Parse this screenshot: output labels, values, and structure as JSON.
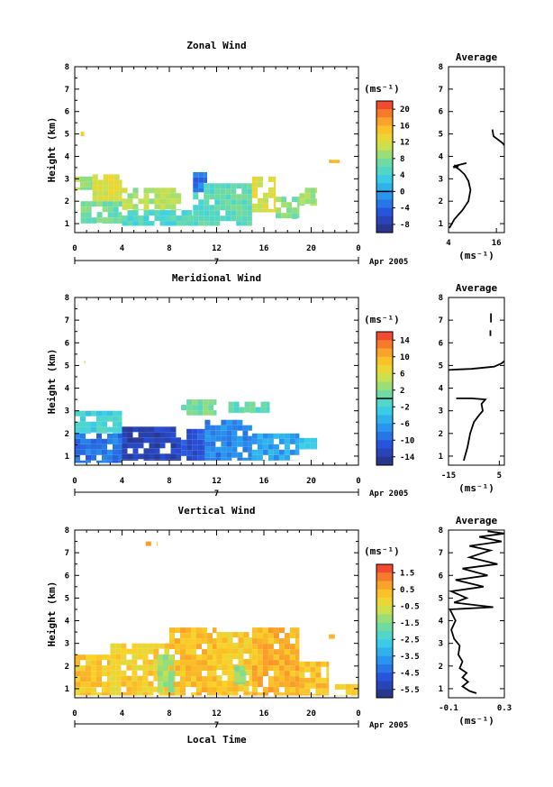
{
  "panels": [
    {
      "id": "zonal",
      "title": "Zonal Wind",
      "ylabel": "Height (km)",
      "xtick_labels": [
        "0",
        "4",
        "8",
        "12",
        "16",
        "20",
        "0"
      ],
      "ytick_labels": [
        "1",
        "2",
        "3",
        "4",
        "5",
        "6",
        "7",
        "8"
      ],
      "date_label": "7",
      "month_label": "Apr 2005",
      "colorbar": {
        "unit": "(ms⁻¹)",
        "tick_labels": [
          "20",
          "16",
          "12",
          "8",
          "4",
          "0",
          "-4",
          "-8"
        ],
        "range": [
          -10,
          22
        ],
        "zero_line": 0
      },
      "avg": {
        "title": "Average",
        "xtick_labels": [
          "4",
          "16"
        ],
        "xlim": [
          4,
          18
        ],
        "xlabel": "(ms⁻¹)"
      }
    },
    {
      "id": "meridional",
      "title": "Meridional Wind",
      "ylabel": "Height (km)",
      "xtick_labels": [
        "0",
        "4",
        "8",
        "12",
        "16",
        "20",
        "0"
      ],
      "ytick_labels": [
        "1",
        "2",
        "3",
        "4",
        "5",
        "6",
        "7",
        "8"
      ],
      "date_label": "7",
      "month_label": "Apr 2005",
      "colorbar": {
        "unit": "(ms⁻¹)",
        "tick_labels": [
          "14",
          "10",
          "6",
          "2",
          "-2",
          "-6",
          "-10",
          "-14"
        ],
        "range": [
          -16,
          16
        ],
        "zero_line": 0
      },
      "avg": {
        "title": "Average",
        "xtick_labels": [
          "-15",
          "5"
        ],
        "xlim": [
          -15,
          7
        ],
        "xlabel": "(ms⁻¹)"
      }
    },
    {
      "id": "vertical",
      "title": "Vertical Wind",
      "ylabel": "Height (km)",
      "xlabel": "Local Time",
      "xtick_labels": [
        "0",
        "4",
        "8",
        "12",
        "16",
        "20",
        "0"
      ],
      "ytick_labels": [
        "1",
        "2",
        "3",
        "4",
        "5",
        "6",
        "7",
        "8"
      ],
      "date_label": "7",
      "month_label": "Apr 2005",
      "colorbar": {
        "unit": "(ms⁻¹)",
        "tick_labels": [
          "1.5",
          "0.5",
          "-0.5",
          "-1.5",
          "-2.5",
          "-3.5",
          "-4.5",
          "-5.5"
        ],
        "range": [
          -6,
          2
        ],
        "zero_line": null
      },
      "avg": {
        "title": "Average",
        "xtick_labels": [
          "-0.1",
          "0.3"
        ],
        "xlim": [
          -0.1,
          0.3
        ],
        "xlabel": "(ms⁻¹)"
      }
    }
  ],
  "chart_data": [
    {
      "type": "heatmap",
      "title": "Zonal Wind",
      "xlabel": "",
      "ylabel": "Height (km)",
      "xlim": [
        0,
        24
      ],
      "ylim": [
        0.6,
        8
      ],
      "colormap": "jet",
      "color_range": [
        -10,
        22
      ],
      "grid": false,
      "regions": [
        {
          "t0": 0,
          "t1": 1.5,
          "z0": 2.5,
          "z1": 3.1,
          "value": 9
        },
        {
          "t0": 1.5,
          "t1": 4,
          "z0": 2.0,
          "z1": 3.2,
          "value": 12
        },
        {
          "t0": 4,
          "t1": 9,
          "z0": 1.6,
          "z1": 2.6,
          "value": 10
        },
        {
          "t0": 0.5,
          "t1": 4,
          "z0": 1.0,
          "z1": 2.0,
          "value": 7
        },
        {
          "t0": 4,
          "t1": 10,
          "z0": 0.9,
          "z1": 1.6,
          "value": 5
        },
        {
          "t0": 10,
          "t1": 15,
          "z0": 0.9,
          "z1": 2.8,
          "value": 6
        },
        {
          "t0": 15,
          "t1": 17,
          "z0": 1.5,
          "z1": 3.1,
          "value": 12
        },
        {
          "t0": 17,
          "t1": 19,
          "z0": 1.2,
          "z1": 2.2,
          "value": 8
        },
        {
          "t0": 19,
          "t1": 20.5,
          "z0": 1.8,
          "z1": 2.6,
          "value": 10
        },
        {
          "t0": 10,
          "t1": 11.2,
          "z0": 2.4,
          "z1": 3.3,
          "value": -3
        },
        {
          "t0": 0.5,
          "t1": 0.8,
          "z0": 4.9,
          "z1": 5.1,
          "value": 14
        },
        {
          "t0": 21.5,
          "t1": 22.5,
          "z0": 3.7,
          "z1": 3.85,
          "value": 15
        }
      ],
      "average": {
        "x_label": "(ms⁻¹)",
        "xlim": [
          4,
          18
        ],
        "ylim": [
          0.6,
          8
        ],
        "segments": [
          [
            [
              4.2,
              0.8
            ],
            [
              5.5,
              1.2
            ],
            [
              7.5,
              1.6
            ],
            [
              9,
              2.0
            ],
            [
              9.5,
              2.5
            ],
            [
              9,
              2.9
            ],
            [
              8,
              3.2
            ],
            [
              6.8,
              3.4
            ],
            [
              6,
              3.5
            ],
            [
              5.5,
              3.55
            ],
            [
              6.2,
              3.6
            ],
            [
              8.5,
              3.7
            ]
          ],
          [
            [
              5.2,
              3.5
            ],
            [
              6.5,
              3.55
            ],
            [
              5.4,
              3.6
            ]
          ],
          [
            [
              15,
              5.2
            ],
            [
              15.3,
              4.9
            ],
            [
              17.5,
              4.6
            ],
            [
              18,
              4.5
            ]
          ]
        ]
      }
    },
    {
      "type": "heatmap",
      "title": "Meridional Wind",
      "xlabel": "",
      "ylabel": "Height (km)",
      "xlim": [
        0,
        24
      ],
      "ylim": [
        0.6,
        8
      ],
      "colormap": "jet",
      "color_range": [
        -16,
        16
      ],
      "grid": false,
      "regions": [
        {
          "t0": 0,
          "t1": 4,
          "z0": 0.7,
          "z1": 2.0,
          "value": -9
        },
        {
          "t0": 4,
          "t1": 9,
          "z0": 0.8,
          "z1": 2.3,
          "value": -13
        },
        {
          "t0": 9,
          "t1": 11,
          "z0": 0.8,
          "z1": 2.2,
          "value": -11
        },
        {
          "t0": 11,
          "t1": 15,
          "z0": 0.8,
          "z1": 2.6,
          "value": -8
        },
        {
          "t0": 15,
          "t1": 19,
          "z0": 0.8,
          "z1": 2.0,
          "value": -6
        },
        {
          "t0": 19,
          "t1": 20.5,
          "z0": 1.3,
          "z1": 1.8,
          "value": -4
        },
        {
          "t0": 0,
          "t1": 4,
          "z0": 2.0,
          "z1": 3.0,
          "value": -2
        },
        {
          "t0": 9,
          "t1": 12,
          "z0": 2.8,
          "z1": 3.5,
          "value": 1
        },
        {
          "t0": 13,
          "t1": 16.5,
          "z0": 2.9,
          "z1": 3.4,
          "value": 0
        },
        {
          "t0": 0.8,
          "t1": 0.9,
          "z0": 5.1,
          "z1": 5.2,
          "value": 4
        }
      ],
      "average": {
        "x_label": "(ms⁻¹)",
        "xlim": [
          -15,
          7
        ],
        "ylim": [
          0.6,
          8
        ],
        "segments": [
          [
            [
              -9,
              0.8
            ],
            [
              -7.5,
              1.4
            ],
            [
              -6.5,
              2.0
            ],
            [
              -5,
              2.5
            ],
            [
              -3,
              2.8
            ],
            [
              -1.5,
              3.0
            ],
            [
              -2,
              3.3
            ],
            [
              -0.5,
              3.5
            ],
            [
              -6,
              3.55
            ],
            [
              -12,
              3.55
            ]
          ],
          [
            [
              -15,
              4.8
            ],
            [
              -12,
              4.82
            ],
            [
              -6,
              4.85
            ],
            [
              3,
              4.95
            ],
            [
              6,
              5.1
            ],
            [
              7,
              5.2
            ]
          ],
          [
            [
              1.5,
              6.3
            ],
            [
              1.5,
              6.55
            ]
          ],
          [
            [
              1.7,
              6.9
            ],
            [
              1.7,
              7.3
            ]
          ]
        ]
      }
    },
    {
      "type": "heatmap",
      "title": "Vertical Wind",
      "xlabel": "Local Time",
      "ylabel": "Height (km)",
      "xlim": [
        0,
        24
      ],
      "ylim": [
        0.6,
        8
      ],
      "colormap": "jet",
      "color_range": [
        -6,
        2
      ],
      "grid": false,
      "regions": [
        {
          "t0": 0,
          "t1": 3,
          "z0": 0.7,
          "z1": 2.5,
          "value": 0.2
        },
        {
          "t0": 3,
          "t1": 8,
          "z0": 0.7,
          "z1": 3.0,
          "value": 0.0
        },
        {
          "t0": 8,
          "t1": 12,
          "z0": 0.7,
          "z1": 3.7,
          "value": 0.3
        },
        {
          "t0": 12,
          "t1": 15,
          "z0": 0.7,
          "z1": 3.5,
          "value": 0.1
        },
        {
          "t0": 15,
          "t1": 19,
          "z0": 0.7,
          "z1": 3.7,
          "value": 0.5
        },
        {
          "t0": 19,
          "t1": 21.5,
          "z0": 0.7,
          "z1": 2.2,
          "value": 0.2
        },
        {
          "t0": 22,
          "t1": 24,
          "z0": 0.7,
          "z1": 1.2,
          "value": 0.0
        },
        {
          "t0": 7,
          "t1": 8.5,
          "z0": 0.8,
          "z1": 2.5,
          "value": -1.2
        },
        {
          "t0": 13.5,
          "t1": 14.5,
          "z0": 1.2,
          "z1": 2.0,
          "value": -1.5
        },
        {
          "t0": 6,
          "t1": 7,
          "z0": 7.3,
          "z1": 7.5,
          "value": 0.4
        },
        {
          "t0": 0.5,
          "t1": 0.9,
          "z0": 5.8,
          "z1": 6.0,
          "value": 0.4
        },
        {
          "t0": 21.5,
          "t1": 22,
          "z0": 3.2,
          "z1": 3.4,
          "value": 0.4
        }
      ],
      "average": {
        "x_label": "(ms⁻¹)",
        "xlim": [
          -0.1,
          0.3
        ],
        "ylim": [
          0.6,
          8
        ],
        "segments": [
          [
            [
              0.1,
              0.8
            ],
            [
              0.05,
              0.9
            ],
            [
              0.0,
              1.1
            ],
            [
              0.04,
              1.3
            ],
            [
              0.0,
              1.5
            ],
            [
              0.03,
              1.7
            ],
            [
              -0.02,
              1.9
            ],
            [
              0.0,
              2.2
            ],
            [
              -0.03,
              2.5
            ],
            [
              -0.02,
              2.9
            ],
            [
              -0.06,
              3.2
            ],
            [
              -0.08,
              3.6
            ],
            [
              -0.05,
              4.0
            ],
            [
              -0.09,
              4.5
            ],
            [
              0.22,
              4.6
            ],
            [
              -0.06,
              4.8
            ],
            [
              0.03,
              5.0
            ],
            [
              -0.08,
              5.3
            ],
            [
              0.15,
              5.5
            ],
            [
              -0.05,
              5.8
            ],
            [
              0.18,
              6.0
            ],
            [
              0.0,
              6.3
            ],
            [
              0.25,
              6.5
            ],
            [
              0.05,
              6.8
            ],
            [
              0.2,
              7.1
            ],
            [
              0.05,
              7.3
            ],
            [
              0.28,
              7.5
            ],
            [
              0.12,
              7.7
            ],
            [
              0.3,
              7.85
            ],
            [
              0.18,
              7.95
            ]
          ]
        ]
      }
    }
  ]
}
